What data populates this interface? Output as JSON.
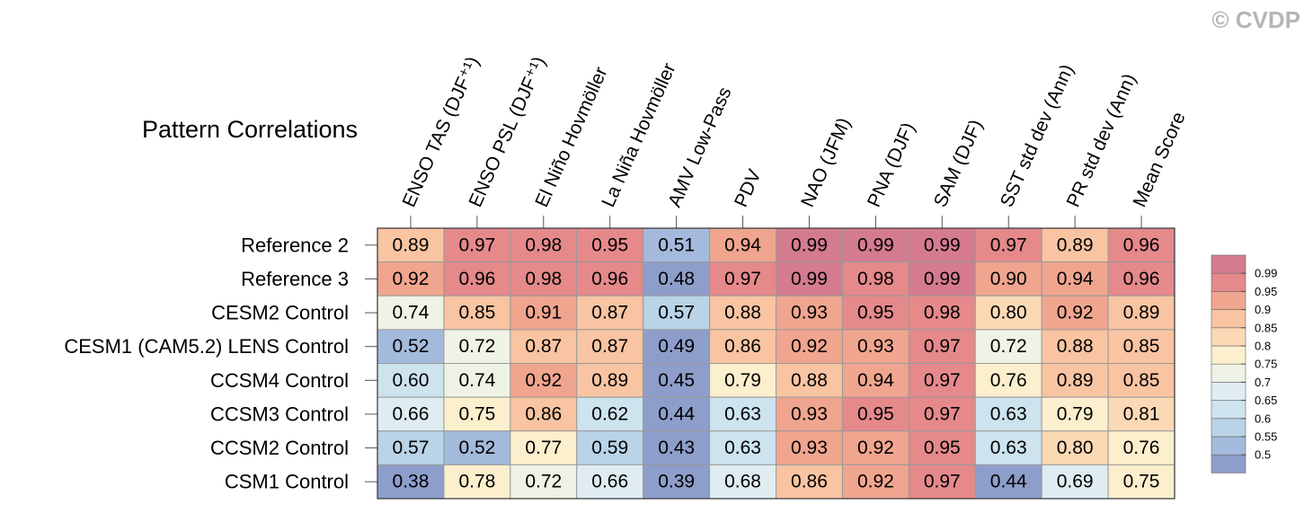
{
  "chart_data": {
    "type": "heatmap",
    "title": "Pattern Correlations",
    "watermark": "© CVDP",
    "columns": [
      "ENSO TAS (DJF⁺¹)",
      "ENSO PSL (DJF⁺¹)",
      "El Niño Hovmöller",
      "La Niña Hovmöller",
      "AMV Low-Pass",
      "PDV",
      "NAO (JFM)",
      "PNA (DJF)",
      "SAM (DJF)",
      "SST std dev (Ann)",
      "PR std dev (Ann)",
      "Mean Score"
    ],
    "rows": [
      "Reference 2",
      "Reference 3",
      "CESM2 Control",
      "CESM1 (CAM5.2) LENS Control",
      "CCSM4 Control",
      "CCSM3 Control",
      "CCSM2 Control",
      "CSM1 Control"
    ],
    "values": [
      [
        0.89,
        0.97,
        0.98,
        0.95,
        0.51,
        0.94,
        0.99,
        0.99,
        0.99,
        0.97,
        0.89,
        0.96
      ],
      [
        0.92,
        0.96,
        0.98,
        0.96,
        0.48,
        0.97,
        0.99,
        0.98,
        0.99,
        0.9,
        0.94,
        0.96
      ],
      [
        0.74,
        0.85,
        0.91,
        0.87,
        0.57,
        0.88,
        0.93,
        0.95,
        0.98,
        0.8,
        0.92,
        0.89
      ],
      [
        0.52,
        0.72,
        0.87,
        0.87,
        0.49,
        0.86,
        0.92,
        0.93,
        0.97,
        0.72,
        0.88,
        0.85
      ],
      [
        0.6,
        0.74,
        0.92,
        0.89,
        0.45,
        0.79,
        0.88,
        0.94,
        0.97,
        0.76,
        0.89,
        0.85
      ],
      [
        0.66,
        0.75,
        0.86,
        0.62,
        0.44,
        0.63,
        0.93,
        0.95,
        0.97,
        0.63,
        0.79,
        0.81
      ],
      [
        0.57,
        0.52,
        0.77,
        0.59,
        0.43,
        0.63,
        0.93,
        0.92,
        0.95,
        0.63,
        0.8,
        0.76
      ],
      [
        0.38,
        0.78,
        0.72,
        0.66,
        0.39,
        0.68,
        0.86,
        0.92,
        0.97,
        0.44,
        0.69,
        0.75
      ]
    ],
    "value_labels": [
      [
        "0.89",
        "0.97",
        "0.98",
        "0.95",
        "0.51",
        "0.94",
        "0.99",
        "0.99",
        "0.99",
        "0.97",
        "0.89",
        "0.96"
      ],
      [
        "0.92",
        "0.96",
        "0.98",
        "0.96",
        "0.48",
        "0.97",
        "0.99",
        "0.98",
        "0.99",
        "0.90",
        "0.94",
        "0.96"
      ],
      [
        "0.74",
        "0.85",
        "0.91",
        "0.87",
        "0.57",
        "0.88",
        "0.93",
        "0.95",
        "0.98",
        "0.80",
        "0.92",
        "0.89"
      ],
      [
        "0.52",
        "0.72",
        "0.87",
        "0.87",
        "0.49",
        "0.86",
        "0.92",
        "0.93",
        "0.97",
        "0.72",
        "0.88",
        "0.85"
      ],
      [
        "0.60",
        "0.74",
        "0.92",
        "0.89",
        "0.45",
        "0.79",
        "0.88",
        "0.94",
        "0.97",
        "0.76",
        "0.89",
        "0.85"
      ],
      [
        "0.66",
        "0.75",
        "0.86",
        "0.62",
        "0.44",
        "0.63",
        "0.93",
        "0.95",
        "0.97",
        "0.63",
        "0.79",
        "0.81"
      ],
      [
        "0.57",
        "0.52",
        "0.77",
        "0.59",
        "0.43",
        "0.63",
        "0.93",
        "0.92",
        "0.95",
        "0.63",
        "0.80",
        "0.76"
      ],
      [
        "0.38",
        "0.78",
        "0.72",
        "0.66",
        "0.39",
        "0.68",
        "0.86",
        "0.92",
        "0.97",
        "0.44",
        "0.69",
        "0.75"
      ]
    ],
    "colorbar": {
      "ticks": [
        0.5,
        0.55,
        0.6,
        0.65,
        0.7,
        0.75,
        0.8,
        0.85,
        0.9,
        0.95,
        0.99
      ],
      "colors": [
        "#8e9ecb",
        "#a4badc",
        "#b9d3e7",
        "#cde3ee",
        "#dfedf2",
        "#eff3e5",
        "#fcefcd",
        "#fbd9b5",
        "#f8c4a2",
        "#f0a58f",
        "#e5898b",
        "#d47b90"
      ]
    }
  }
}
